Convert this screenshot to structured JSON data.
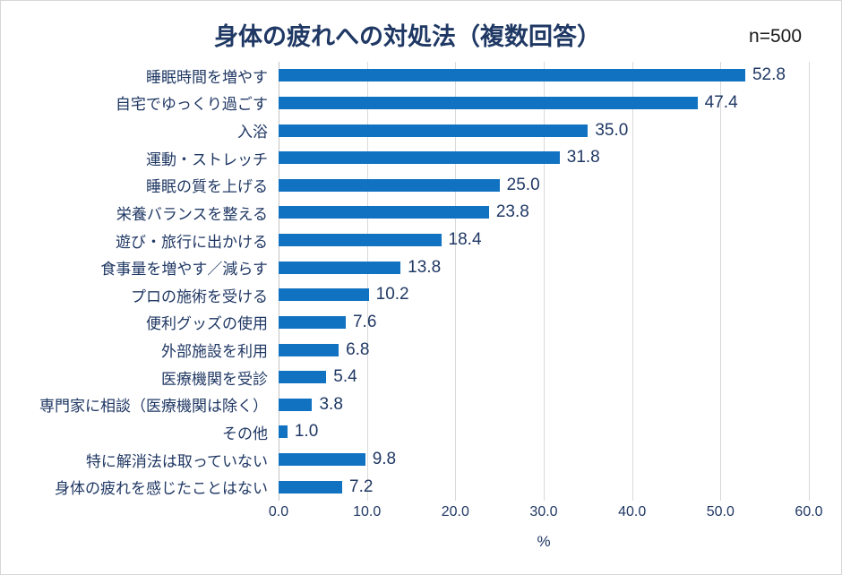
{
  "chart": {
    "title": "身体の疲れへの対処法（複数回答）",
    "n_label": "n=500",
    "xlabel": "%"
  },
  "chart_data": {
    "type": "bar",
    "orientation": "horizontal",
    "title": "身体の疲れへの対処法（複数回答）",
    "n_label": "n=500",
    "xlabel": "%",
    "ylabel": "",
    "categories": [
      "睡眠時間を増やす",
      "自宅でゆっくり過ごす",
      "入浴",
      "運動・ストレッチ",
      "睡眠の質を上げる",
      "栄養バランスを整える",
      "遊び・旅行に出かける",
      "食事量を増やす／減らす",
      "プロの施術を受ける",
      "便利グッズの使用",
      "外部施設を利用",
      "医療機関を受診",
      "専門家に相談（医療機関は除く）",
      "その他",
      "特に解消法は取っていない",
      "身体の疲れを感じたことはない"
    ],
    "values": [
      52.8,
      47.4,
      35.0,
      31.8,
      25.0,
      23.8,
      18.4,
      13.8,
      10.2,
      7.6,
      6.8,
      5.4,
      3.8,
      1.0,
      9.8,
      7.2
    ],
    "value_labels": [
      "52.8",
      "47.4",
      "35.0",
      "31.8",
      "25.0",
      "23.8",
      "18.4",
      "13.8",
      "10.2",
      "7.6",
      "6.8",
      "5.4",
      "3.8",
      "1.0",
      "9.8",
      "7.2"
    ],
    "xlim": [
      0,
      60
    ],
    "xticks": [
      "0.0",
      "10.0",
      "20.0",
      "30.0",
      "40.0",
      "50.0",
      "60.0"
    ],
    "grid": true,
    "legend": false,
    "colors": {
      "bar": "#1272c2",
      "title": "#1f3864",
      "labels": "#203864",
      "gridline": "#d9d9d9",
      "n_label": "#1a1a1a"
    }
  }
}
